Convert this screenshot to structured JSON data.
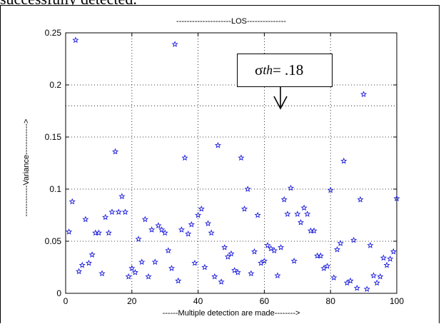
{
  "caption": "successfully detected.",
  "annotation": {
    "symbol": "σ",
    "subscript": "th",
    "value_text": "= .18"
  },
  "colors": {
    "marker": "#1a1adb",
    "axis": "#000000",
    "grid": "#000000",
    "threshold": "#000000"
  },
  "chart_data": {
    "type": "scatter",
    "title": "---------------------LOS---------------",
    "xlabel": "------Multiple detection are made-------->",
    "ylabel": "------------Variance------------>",
    "xlim": [
      0,
      100
    ],
    "ylim": [
      0,
      0.25
    ],
    "xticks": [
      0,
      20,
      40,
      60,
      80,
      100
    ],
    "yticks": [
      0,
      0.05,
      0.1,
      0.15,
      0.2,
      0.25
    ],
    "ytick_labels": [
      "0",
      "0.05",
      "0.1",
      "0.15",
      "0.2",
      "0.25"
    ],
    "grid": true,
    "marker": "star",
    "threshold": {
      "y": 0.18,
      "style": "dotted"
    },
    "x": [
      1,
      2,
      3,
      4,
      5,
      6,
      7,
      8,
      9,
      10,
      11,
      12,
      13,
      14,
      15,
      16,
      17,
      18,
      19,
      20,
      21,
      22,
      23,
      24,
      25,
      26,
      27,
      28,
      29,
      30,
      31,
      32,
      33,
      34,
      35,
      36,
      37,
      38,
      39,
      40,
      41,
      42,
      43,
      44,
      45,
      46,
      47,
      48,
      49,
      50,
      51,
      52,
      53,
      54,
      55,
      56,
      57,
      58,
      59,
      60,
      61,
      62,
      63,
      64,
      65,
      66,
      67,
      68,
      69,
      70,
      71,
      72,
      73,
      74,
      75,
      76,
      77,
      78,
      79,
      80,
      81,
      82,
      83,
      84,
      85,
      86,
      87,
      88,
      89,
      90,
      91,
      92,
      93,
      94,
      95,
      96,
      97,
      98,
      99,
      100
    ],
    "y": [
      0.059,
      0.088,
      0.243,
      0.021,
      0.027,
      0.071,
      0.029,
      0.037,
      0.058,
      0.058,
      0.019,
      0.073,
      0.058,
      0.078,
      0.136,
      0.078,
      0.093,
      0.078,
      0.016,
      0.024,
      0.02,
      0.052,
      0.03,
      0.071,
      0.016,
      0.061,
      0.03,
      0.065,
      0.061,
      0.058,
      0.041,
      0.024,
      0.239,
      0.012,
      0.061,
      0.13,
      0.057,
      0.066,
      0.029,
      0.075,
      0.081,
      0.025,
      0.067,
      0.058,
      0.016,
      0.142,
      0.011,
      0.044,
      0.035,
      0.038,
      0.022,
      0.02,
      0.13,
      0.081,
      0.1,
      0.019,
      0.04,
      0.075,
      0.029,
      0.031,
      0.046,
      0.043,
      0.041,
      0.017,
      0.044,
      0.09,
      0.076,
      0.101,
      0.031,
      0.076,
      0.068,
      0.082,
      0.076,
      0.06,
      0.06,
      0.036,
      0.036,
      0.024,
      0.026,
      0.099,
      0.015,
      0.042,
      0.048,
      0.127,
      0.01,
      0.012,
      0.051,
      0.005,
      0.09,
      0.191,
      0.004,
      0.046,
      0.017,
      0.01,
      0.016,
      0.034,
      0.027,
      0.033,
      0.04,
      0.091
    ]
  }
}
